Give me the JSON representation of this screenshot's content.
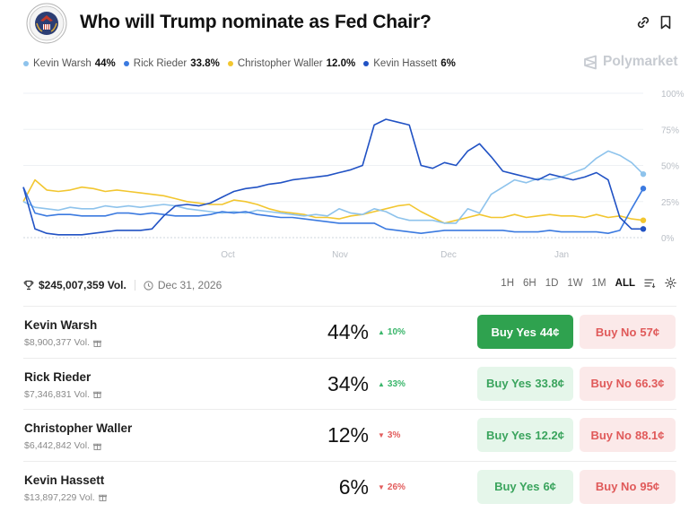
{
  "header": {
    "title": "Who will Trump nominate as Fed Chair?",
    "seal_icon": "federal-reserve-seal",
    "link_icon": "link-icon",
    "bookmark_icon": "bookmark-icon"
  },
  "brand": {
    "name": "Polymarket",
    "icon": "polymarket-logo-icon"
  },
  "legend": [
    {
      "name": "Kevin Warsh",
      "pct": "44%",
      "color": "#8ec3ec"
    },
    {
      "name": "Rick Rieder",
      "pct": "33.8%",
      "color": "#3b7ae0"
    },
    {
      "name": "Christopher Waller",
      "pct": "12.0%",
      "color": "#f2c62f"
    },
    {
      "name": "Kevin Hassett",
      "pct": "6%",
      "color": "#2152c4"
    }
  ],
  "chart_data": {
    "type": "line",
    "x_ticks": [
      "Oct",
      "Nov",
      "Dec",
      "Jan"
    ],
    "y_ticks": [
      "100%",
      "75%",
      "50%",
      "25%",
      "0%"
    ],
    "ylim": [
      0,
      100
    ],
    "grid": true,
    "series": [
      {
        "name": "Kevin Warsh",
        "color": "#8ec3ec",
        "values": [
          25,
          21,
          20,
          19,
          21,
          20,
          20,
          22,
          21,
          22,
          21,
          22,
          23,
          22,
          20,
          19,
          18,
          17,
          18,
          17,
          19,
          18,
          17,
          16,
          15,
          16,
          15,
          20,
          17,
          16,
          20,
          18,
          14,
          12,
          12,
          12,
          10,
          10,
          20,
          17,
          30,
          35,
          40,
          38,
          41,
          40,
          42,
          45,
          48,
          55,
          60,
          57,
          52,
          44
        ]
      },
      {
        "name": "Rick Rieder",
        "color": "#3b7ae0",
        "values": [
          35,
          17,
          15,
          16,
          16,
          15,
          15,
          15,
          17,
          17,
          16,
          17,
          16,
          15,
          15,
          15,
          16,
          18,
          17,
          18,
          16,
          15,
          14,
          14,
          13,
          12,
          11,
          10,
          10,
          10,
          10,
          6,
          5,
          4,
          3,
          4,
          5,
          5,
          5,
          5,
          5,
          5,
          4,
          4,
          4,
          5,
          4,
          4,
          4,
          4,
          3,
          5,
          20,
          34
        ]
      },
      {
        "name": "Christopher Waller",
        "color": "#f2c62f",
        "values": [
          25,
          40,
          33,
          32,
          33,
          35,
          34,
          32,
          33,
          32,
          31,
          30,
          29,
          27,
          25,
          24,
          23,
          23,
          26,
          25,
          23,
          20,
          18,
          17,
          16,
          14,
          14,
          13,
          15,
          16,
          18,
          20,
          22,
          23,
          18,
          14,
          10,
          12,
          14,
          16,
          14,
          14,
          16,
          14,
          15,
          16,
          15,
          15,
          14,
          16,
          14,
          15,
          13,
          12
        ]
      },
      {
        "name": "Kevin Hassett",
        "color": "#2152c4",
        "values": [
          35,
          6,
          3,
          2,
          2,
          2,
          3,
          4,
          5,
          5,
          5,
          6,
          15,
          22,
          23,
          22,
          24,
          28,
          32,
          34,
          35,
          37,
          38,
          40,
          41,
          42,
          43,
          45,
          47,
          50,
          78,
          82,
          80,
          78,
          50,
          48,
          52,
          50,
          60,
          65,
          56,
          46,
          44,
          42,
          40,
          44,
          42,
          40,
          42,
          45,
          40,
          14,
          6,
          6
        ]
      }
    ]
  },
  "stats": {
    "volume": "$245,007,359 Vol.",
    "date": "Dec 31, 2026",
    "ranges": [
      "1H",
      "6H",
      "1D",
      "1W",
      "1M",
      "ALL"
    ],
    "active_range": "ALL"
  },
  "outcomes": [
    {
      "name": "Kevin Warsh",
      "volume": "$8,900,377 Vol.",
      "pct": "44%",
      "change": "10%",
      "direction": "up",
      "yes_label": "Buy Yes",
      "yes_price": "44¢",
      "no_label": "Buy No",
      "no_price": "57¢",
      "primary": true
    },
    {
      "name": "Rick Rieder",
      "volume": "$7,346,831 Vol.",
      "pct": "34%",
      "change": "33%",
      "direction": "up",
      "yes_label": "Buy Yes",
      "yes_price": "33.8¢",
      "no_label": "Buy No",
      "no_price": "66.3¢",
      "primary": false
    },
    {
      "name": "Christopher Waller",
      "volume": "$6,442,842 Vol.",
      "pct": "12%",
      "change": "3%",
      "direction": "down",
      "yes_label": "Buy Yes",
      "yes_price": "12.2¢",
      "no_label": "Buy No",
      "no_price": "88.1¢",
      "primary": false
    },
    {
      "name": "Kevin Hassett",
      "volume": "$13,897,229 Vol.",
      "pct": "6%",
      "change": "26%",
      "direction": "down",
      "yes_label": "Buy Yes",
      "yes_price": "6¢",
      "no_label": "Buy No",
      "no_price": "95¢",
      "primary": false
    }
  ]
}
